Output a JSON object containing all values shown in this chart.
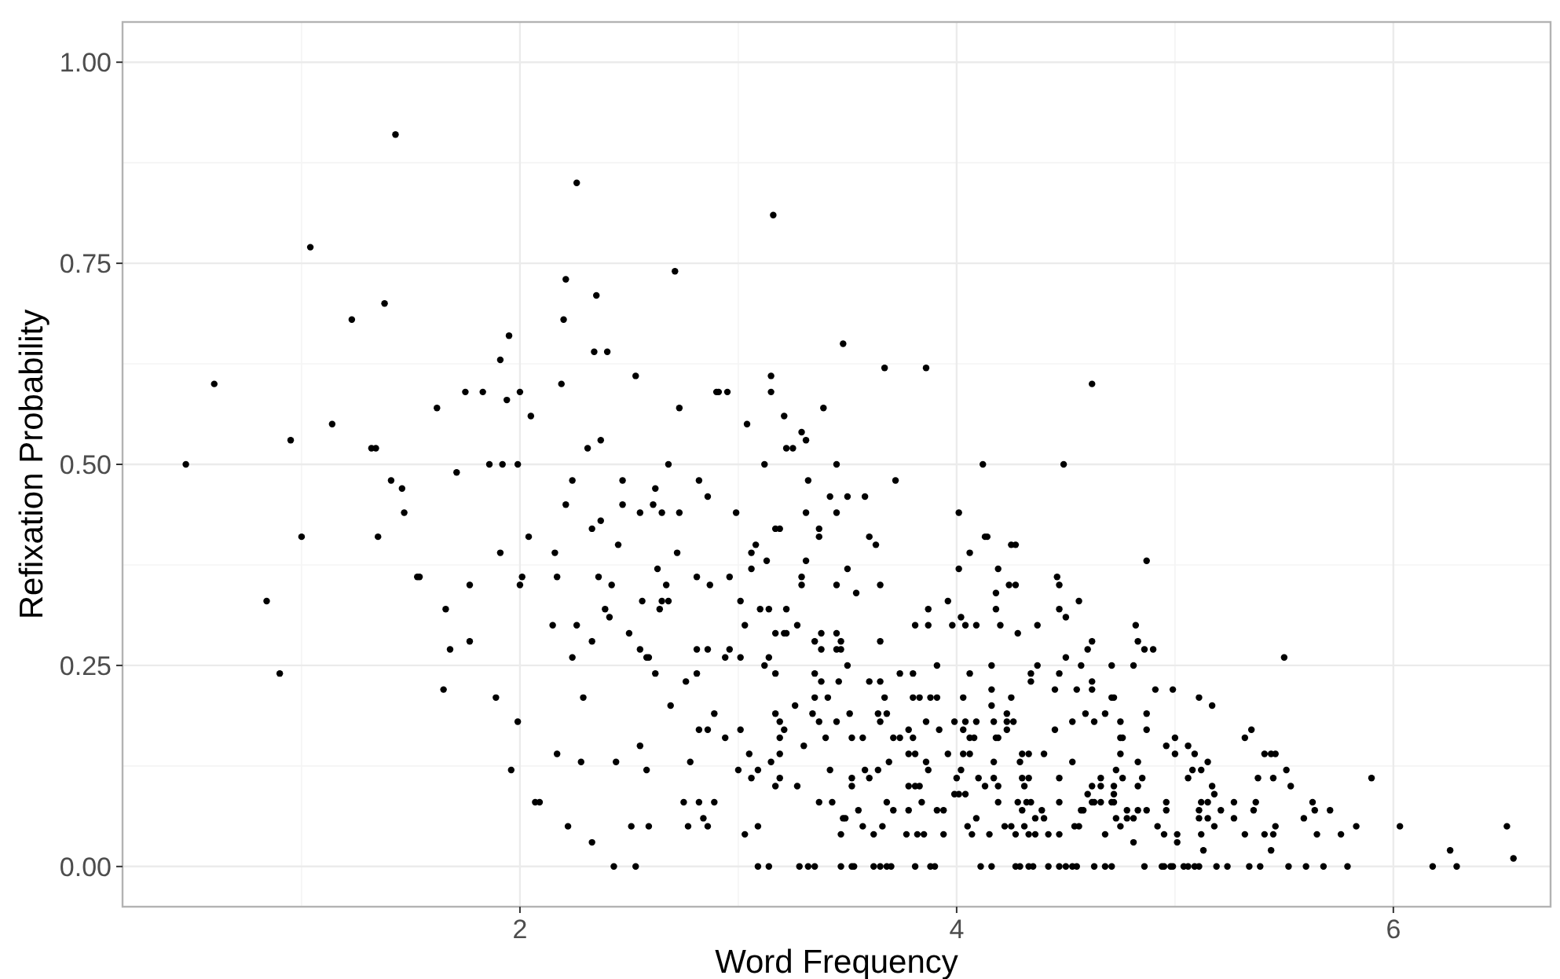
{
  "chart_data": {
    "type": "scatter",
    "xlabel": "Word Frequency",
    "ylabel": "Refixation Probability",
    "xlim": [
      0.18,
      6.72
    ],
    "ylim": [
      -0.05,
      1.05
    ],
    "xticks": [
      2,
      4,
      6
    ],
    "yticks": [
      {
        "value": 0,
        "label": "0.00"
      },
      {
        "value": 0.25,
        "label": "0.25"
      },
      {
        "value": 0.5,
        "label": "0.50"
      },
      {
        "value": 0.75,
        "label": "0.75"
      },
      {
        "value": 1,
        "label": "1.00"
      }
    ],
    "grid": true,
    "marker": "circle",
    "series": [
      {
        "color": "#000000",
        "x": [
          0.47,
          0.6,
          0.84,
          0.9,
          0.95,
          1.0,
          1.04,
          1.14,
          1.23,
          1.32,
          1.34,
          1.35,
          1.38,
          1.41,
          1.43,
          1.46,
          1.47,
          1.53,
          1.54,
          1.62,
          1.65,
          1.66,
          1.68,
          1.71,
          1.75,
          1.77,
          1.77,
          1.83,
          1.86,
          1.89,
          1.91,
          1.91,
          1.92,
          1.94,
          1.95,
          1.96,
          1.99,
          1.99,
          2.0,
          2.0,
          2.01,
          2.04,
          2.05,
          2.07,
          2.09,
          2.15,
          2.16,
          2.17,
          2.17,
          2.19,
          2.2,
          2.21,
          2.21,
          2.22,
          2.24,
          2.24,
          2.26,
          2.26,
          2.28,
          2.29,
          2.31,
          2.33,
          2.33,
          2.33,
          2.34,
          2.35,
          2.36,
          2.37,
          2.37,
          2.39,
          2.4,
          2.41,
          2.42,
          2.43,
          2.44,
          2.45,
          2.47,
          2.47,
          2.5,
          2.51,
          2.53,
          2.53,
          2.55,
          2.55,
          2.55,
          2.56,
          2.58,
          2.58,
          2.59,
          2.59,
          2.61,
          2.62,
          2.62,
          2.63,
          2.64,
          2.65,
          2.65,
          2.67,
          2.68,
          2.68,
          2.69,
          2.71,
          2.72,
          2.73,
          2.73,
          2.75,
          2.76,
          2.77,
          2.78,
          2.81,
          2.81,
          2.81,
          2.82,
          2.82,
          2.82,
          2.84,
          2.86,
          2.86,
          2.86,
          2.86,
          2.87,
          2.89,
          2.89,
          2.9,
          2.91,
          2.94,
          2.94,
          2.95,
          2.96,
          2.96,
          2.99,
          3.0,
          3.01,
          3.01,
          3.01,
          3.03,
          3.03,
          3.04,
          3.05,
          3.06,
          3.06,
          3.08,
          3.06,
          3.09,
          3.09,
          3.09,
          3.1,
          3.12,
          3.12,
          3.13,
          3.14,
          3.14,
          3.14,
          3.15,
          3.15,
          3.15,
          3.16,
          3.17,
          3.17,
          3.17,
          3.17,
          3.17,
          3.19,
          3.19,
          3.19,
          3.19,
          3.19,
          3.21,
          3.21,
          3.21,
          3.22,
          3.22,
          3.22,
          3.25,
          3.26,
          3.27,
          3.27,
          3.28,
          3.29,
          3.29,
          3.29,
          3.3,
          3.31,
          3.31,
          3.31,
          3.32,
          3.32,
          3.34,
          3.35,
          3.35,
          3.35,
          3.35,
          3.37,
          3.37,
          3.37,
          3.37,
          3.38,
          3.38,
          3.38,
          3.39,
          3.4,
          3.41,
          3.42,
          3.42,
          3.43,
          3.45,
          3.45,
          3.45,
          3.45,
          3.45,
          3.45,
          3.46,
          3.47,
          3.47,
          3.47,
          3.47,
          3.48,
          3.48,
          3.72,
          3.5,
          3.58,
          3.6,
          3.63,
          3.5,
          3.54,
          3.65,
          3.65,
          3.5,
          3.6,
          3.65,
          3.74,
          3.8,
          3.67,
          3.51,
          3.64,
          3.68,
          3.65,
          3.52,
          3.57,
          3.71,
          3.74,
          3.78,
          3.8,
          3.78,
          3.81,
          3.69,
          3.52,
          3.52,
          3.58,
          3.6,
          3.64,
          3.78,
          3.81,
          3.83,
          3.55,
          3.68,
          3.71,
          3.78,
          3.49,
          3.57,
          3.62,
          3.66,
          3.77,
          3.82,
          3.85,
          3.52,
          3.53,
          3.62,
          3.65,
          3.68,
          3.7,
          3.81,
          3.88,
          3.9,
          3.81,
          3.87,
          3.87,
          3.91,
          3.8,
          3.83,
          3.88,
          3.91,
          3.86,
          3.92,
          3.86,
          3.87,
          3.84,
          3.91,
          3.94,
          3.94,
          3.96,
          3.98,
          4.01,
          4.01,
          4.02,
          4.04,
          4.06,
          4.06,
          4.09,
          4.03,
          3.99,
          4.04,
          4.09,
          4.03,
          4.06,
          4.08,
          3.96,
          4.06,
          4.03,
          4.0,
          4.02,
          3.99,
          4.01,
          4.04,
          4.05,
          4.09,
          4.07,
          4.1,
          4.13,
          4.11,
          4.16,
          4.13,
          4.14,
          4.16,
          4.16,
          4.15,
          4.16,
          4.17,
          4.18,
          4.19,
          4.17,
          4.18,
          4.18,
          4.2,
          4.19,
          4.17,
          4.19,
          4.19,
          4.24,
          4.27,
          4.25,
          4.27,
          4.28,
          4.23,
          4.23,
          4.23,
          4.26,
          4.25,
          4.22,
          4.25,
          4.28,
          4.29,
          4.27,
          4.3,
          4.3,
          4.31,
          4.32,
          4.34,
          4.33,
          4.33,
          4.31,
          4.33,
          4.36,
          4.3,
          4.34,
          4.34,
          4.37,
          4.37,
          4.27,
          4.29,
          4.33,
          4.35,
          4.39,
          4.36,
          4.4,
          4.4,
          4.42,
          4.42,
          4.47,
          4.5,
          4.53,
          4.55,
          4.45,
          4.46,
          4.47,
          4.47,
          4.5,
          4.5,
          4.45,
          4.47,
          4.47,
          4.47,
          4.47,
          4.53,
          4.53,
          4.55,
          4.56,
          4.54,
          4.56,
          4.57,
          4.57,
          4.58,
          4.59,
          4.6,
          4.62,
          4.6,
          4.62,
          4.62,
          4.62,
          4.63,
          4.62,
          4.63,
          4.63,
          4.68,
          4.71,
          4.66,
          4.66,
          4.66,
          4.68,
          4.68,
          4.71,
          4.71,
          4.72,
          4.71,
          4.72,
          4.72,
          4.72,
          4.73,
          4.73,
          4.75,
          4.75,
          4.75,
          4.76,
          4.75,
          4.76,
          4.78,
          4.78,
          4.81,
          4.81,
          4.81,
          4.82,
          4.83,
          4.83,
          4.83,
          4.85,
          4.83,
          4.86,
          4.9,
          4.86,
          4.87,
          4.87,
          4.87,
          4.87,
          4.91,
          4.94,
          4.95,
          4.98,
          4.99,
          4.92,
          4.95,
          4.96,
          4.96,
          4.96,
          4.99,
          5.0,
          5.0,
          5.01,
          5.01,
          5.04,
          5.06,
          5.09,
          5.11,
          5.06,
          5.06,
          5.09,
          5.08,
          5.12,
          5.11,
          5.11,
          5.12,
          5.11,
          5.17,
          5.12,
          5.13,
          5.15,
          5.15,
          5.15,
          5.17,
          5.18,
          5.18,
          5.19,
          5.21,
          5.24,
          5.27,
          5.27,
          5.32,
          5.32,
          5.34,
          5.35,
          5.36,
          5.37,
          5.38,
          5.39,
          5.41,
          5.41,
          5.44,
          5.45,
          5.46,
          5.44,
          5.46,
          5.45,
          5.5,
          5.51,
          5.53,
          5.52,
          5.59,
          5.6,
          5.63,
          5.64,
          5.65,
          5.68,
          5.71,
          5.76,
          5.79,
          5.83,
          5.9,
          6.03,
          6.18,
          6.26,
          6.29,
          6.52,
          6.55,
          3.86,
          4.12,
          4.62,
          4.49,
          3.67
        ],
        "values": [
          0.5,
          0.6,
          0.33,
          0.24,
          0.53,
          0.41,
          0.77,
          0.55,
          0.68,
          0.52,
          0.52,
          0.41,
          0.7,
          0.48,
          0.91,
          0.47,
          0.44,
          0.36,
          0.36,
          0.57,
          0.22,
          0.32,
          0.27,
          0.49,
          0.59,
          0.28,
          0.35,
          0.59,
          0.5,
          0.21,
          0.39,
          0.63,
          0.5,
          0.58,
          0.66,
          0.12,
          0.5,
          0.18,
          0.59,
          0.35,
          0.36,
          0.41,
          0.56,
          0.08,
          0.08,
          0.3,
          0.39,
          0.36,
          0.14,
          0.6,
          0.68,
          0.73,
          0.45,
          0.05,
          0.48,
          0.26,
          0.85,
          0.3,
          0.13,
          0.21,
          0.52,
          0.42,
          0.28,
          0.03,
          0.64,
          0.71,
          0.36,
          0.53,
          0.43,
          0.32,
          0.64,
          0.31,
          0.35,
          0.0,
          0.13,
          0.4,
          0.48,
          0.45,
          0.29,
          0.05,
          0.61,
          0.0,
          0.15,
          0.27,
          0.44,
          0.33,
          0.26,
          0.12,
          0.26,
          0.05,
          0.45,
          0.47,
          0.24,
          0.37,
          0.32,
          0.44,
          0.33,
          0.35,
          0.33,
          0.5,
          0.2,
          0.74,
          0.39,
          0.44,
          0.57,
          0.08,
          0.23,
          0.05,
          0.13,
          0.27,
          0.36,
          0.24,
          0.48,
          0.17,
          0.08,
          0.06,
          0.17,
          0.46,
          0.27,
          0.05,
          0.35,
          0.19,
          0.08,
          0.59,
          0.59,
          0.16,
          0.26,
          0.59,
          0.27,
          0.36,
          0.44,
          0.12,
          0.26,
          0.33,
          0.17,
          0.3,
          0.04,
          0.55,
          0.14,
          0.37,
          0.39,
          0.4,
          0.11,
          0.05,
          0.12,
          0.0,
          0.32,
          0.5,
          0.25,
          0.38,
          0.0,
          0.26,
          0.32,
          0.61,
          0.59,
          0.13,
          0.81,
          0.42,
          0.29,
          0.24,
          0.19,
          0.1,
          0.42,
          0.18,
          0.14,
          0.16,
          0.11,
          0.56,
          0.29,
          0.17,
          0.52,
          0.29,
          0.32,
          0.52,
          0.2,
          0.3,
          0.1,
          0.0,
          0.54,
          0.36,
          0.35,
          0.15,
          0.53,
          0.38,
          0.44,
          0.48,
          0.0,
          0.19,
          0.0,
          0.28,
          0.24,
          0.21,
          0.42,
          0.41,
          0.08,
          0.18,
          0.29,
          0.27,
          0.23,
          0.57,
          0.16,
          0.21,
          0.46,
          0.12,
          0.08,
          0.5,
          0.35,
          0.29,
          0.27,
          0.44,
          0.18,
          0.23,
          0.28,
          0.27,
          0.0,
          0.04,
          0.06,
          0.65,
          0.48,
          0.46,
          0.46,
          0.41,
          0.4,
          0.37,
          0.34,
          0.35,
          0.28,
          0.25,
          0.23,
          0.23,
          0.24,
          0.24,
          0.21,
          0.19,
          0.19,
          0.19,
          0.18,
          0.16,
          0.16,
          0.16,
          0.16,
          0.17,
          0.16,
          0.14,
          0.14,
          0.13,
          0.11,
          0.1,
          0.12,
          0.11,
          0.12,
          0.1,
          0.1,
          0.1,
          0.07,
          0.08,
          0.07,
          0.07,
          0.06,
          0.05,
          0.04,
          0.05,
          0.04,
          0.04,
          0.04,
          0,
          0,
          0,
          0,
          0,
          0,
          0,
          0,
          0,
          0.3,
          0.32,
          0.3,
          0.25,
          0.21,
          0.21,
          0.21,
          0.21,
          0.18,
          0.17,
          0.13,
          0.12,
          0.08,
          0.07,
          0.07,
          0.04,
          0.33,
          0.3,
          0.44,
          0.37,
          0.31,
          0.3,
          0.39,
          0.24,
          0.3,
          0.21,
          0.18,
          0.18,
          0.18,
          0.17,
          0.16,
          0.16,
          0.14,
          0.14,
          0.14,
          0.11,
          0.12,
          0.09,
          0.09,
          0.09,
          0.05,
          0.06,
          0.04,
          0.11,
          0.1,
          0,
          0,
          0.41,
          0.41,
          0.22,
          0.2,
          0.04,
          0.25,
          0.18,
          0.16,
          0.16,
          0.13,
          0.34,
          0.32,
          0.3,
          0.37,
          0.11,
          0.1,
          0.08,
          0.35,
          0.35,
          0.4,
          0.4,
          0.29,
          0.19,
          0.18,
          0.17,
          0.18,
          0.21,
          0.05,
          0.05,
          0.08,
          0.13,
          0.04,
          0.11,
          0.14,
          0.1,
          0.08,
          0.08,
          0.14,
          0.11,
          0.05,
          0.04,
          0.04,
          0.07,
          0.24,
          0.23,
          0.25,
          0.3,
          0,
          0,
          0,
          0,
          0.07,
          0.06,
          0.06,
          0.14,
          0.04,
          0,
          0,
          0,
          0,
          0,
          0.22,
          0.36,
          0.35,
          0.32,
          0.31,
          0.26,
          0.17,
          0.24,
          0.11,
          0.04,
          0.08,
          0.13,
          0.18,
          0.22,
          0.33,
          0.05,
          0.05,
          0.25,
          0.07,
          0.07,
          0.19,
          0.27,
          0.28,
          0.09,
          0.1,
          0.23,
          0.22,
          0.18,
          0.08,
          0.08,
          0,
          0,
          0,
          0.11,
          0.1,
          0.08,
          0.19,
          0.04,
          0.25,
          0.21,
          0.21,
          0.08,
          0.08,
          0.1,
          0.09,
          0.06,
          0.12,
          0.05,
          0.18,
          0.16,
          0.16,
          0.14,
          0.11,
          0.07,
          0.06,
          0.06,
          0.25,
          0.03,
          0.3,
          0.28,
          0.13,
          0.1,
          0.11,
          0.07,
          0.27,
          0.27,
          0,
          0.38,
          0.19,
          0.17,
          0.07,
          0.22,
          0,
          0,
          0,
          0,
          0.05,
          0.04,
          0.15,
          0.08,
          0.07,
          0.22,
          0.16,
          0.14,
          0.04,
          0.03,
          0,
          0,
          0,
          0,
          0.11,
          0.15,
          0.14,
          0.12,
          0.12,
          0.07,
          0.06,
          0.08,
          0.21,
          0.2,
          0.04,
          0.02,
          0.13,
          0.08,
          0.06,
          0.1,
          0.09,
          0.05,
          0,
          0.07,
          0,
          0.08,
          0.06,
          0.16,
          0.04,
          0,
          0.17,
          0.07,
          0.08,
          0.11,
          0,
          0.04,
          0.14,
          0.02,
          0.04,
          0.05,
          0.14,
          0.14,
          0.11,
          0.26,
          0.12,
          0.1,
          0,
          0.06,
          0,
          0.08,
          0.07,
          0.04,
          0,
          0.07,
          0.04,
          0,
          0.05,
          0.11,
          0.05,
          0,
          0.02,
          0,
          0.05,
          0.01,
          0.62,
          0.5,
          0.6,
          0.5,
          0.62
        ]
      }
    ]
  }
}
